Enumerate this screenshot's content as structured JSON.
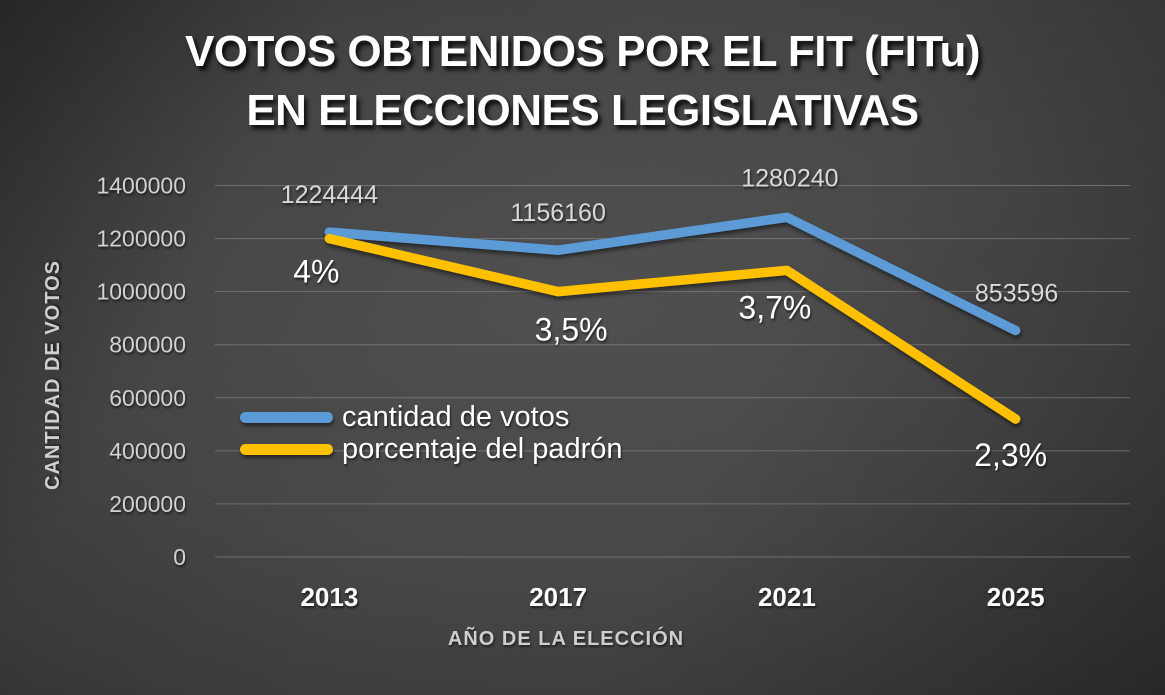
{
  "title": {
    "line1": "VOTOS OBTENIDOS POR EL FIT (FITu)",
    "line2": "EN ELECCIONES LEGISLATIVAS"
  },
  "chart_data": {
    "type": "line",
    "categories": [
      "2013",
      "2017",
      "2021",
      "2025"
    ],
    "series": [
      {
        "name": "cantidad de votos",
        "color": "#5B9BD5",
        "axis": "primary",
        "values": [
          1224444,
          1156160,
          1280240,
          853596
        ],
        "labels": [
          "1224444",
          "1156160",
          "1280240",
          "853596"
        ]
      },
      {
        "name": "porcentaje del padrón",
        "color": "#FFC000",
        "axis": "secondary",
        "values": [
          4.0,
          3.5,
          3.7,
          2.3
        ],
        "labels": [
          "4%",
          "3,5%",
          "3,7%",
          "2,3%"
        ]
      }
    ],
    "xlabel": "AÑO DE LA ELECCIÓN",
    "ylabel": "CANTIDAD DE VOTOS",
    "primary_axis": {
      "min": 0,
      "max": 1400000,
      "step": 200000,
      "ticks": [
        "0",
        "200000",
        "400000",
        "600000",
        "800000",
        "1000000",
        "1200000",
        "1400000"
      ]
    },
    "secondary_axis": {
      "min": 1.0,
      "max": 4.5,
      "visible": false
    },
    "grid": true,
    "legend_position": "inside-left"
  },
  "colors": {
    "series_votes": "#5B9BD5",
    "series_percent": "#FFC000",
    "grid": "#9a9a9a",
    "tick_text": "#d2d2d2",
    "value_label_text": "#d9d9d9",
    "percent_label_text": "#ffffff",
    "category_text": "#fcfcfc",
    "title_text": "#ffffff"
  }
}
